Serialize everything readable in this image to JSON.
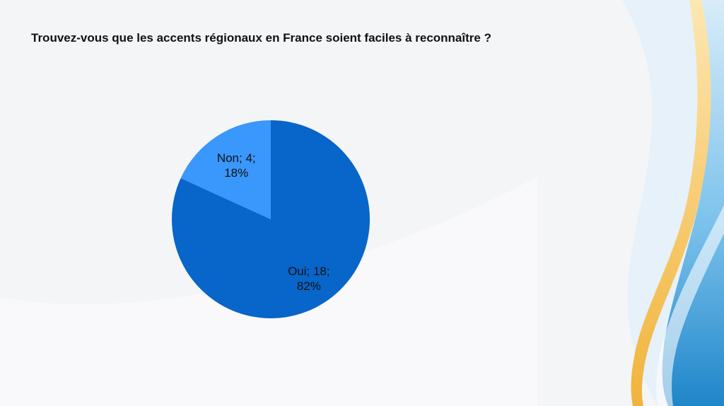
{
  "slide": {
    "title": "Trouvez-vous que les accents régionaux en France soient faciles à reconnaître ?"
  },
  "colors": {
    "background": "#f4f5f7",
    "slice_oui": "#0865c9",
    "slice_non": "#3a97fb",
    "deco_blue": "#2a8fd0",
    "deco_gold": "#f3c35b"
  },
  "chart_data": {
    "type": "pie",
    "title": "Trouvez-vous que les accents régionaux en France soient faciles à reconnaître ?",
    "slices": [
      {
        "label": "Oui",
        "value": 18,
        "percent": "82%",
        "color": "#0865c9"
      },
      {
        "label": "Non",
        "value": 4,
        "percent": "18%",
        "color": "#3a97fb"
      }
    ],
    "labels": {
      "oui_line1": "Oui; 18;",
      "oui_line2": "82%",
      "non_line1": "Non; 4;",
      "non_line2": "18%"
    },
    "legend": "none"
  }
}
